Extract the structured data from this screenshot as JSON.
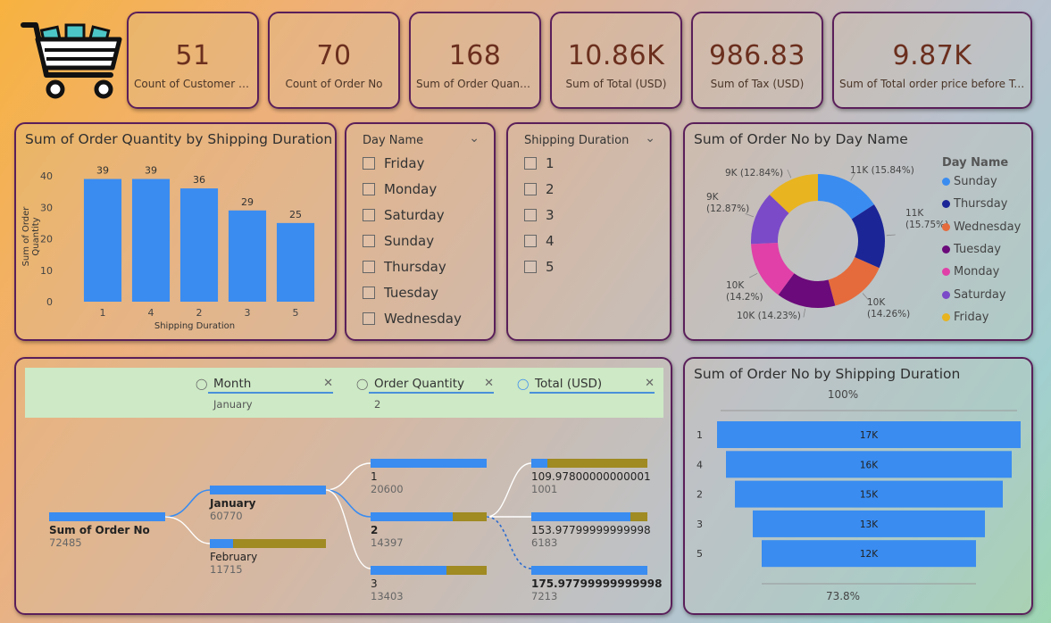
{
  "kpis": [
    {
      "value": "51",
      "label": "Count of Customer N..."
    },
    {
      "value": "70",
      "label": "Count of Order No"
    },
    {
      "value": "168",
      "label": "Sum of Order Quantity"
    },
    {
      "value": "10.86K",
      "label": "Sum of Total (USD)"
    },
    {
      "value": "986.83",
      "label": "Sum of Tax (USD)"
    },
    {
      "value": "9.87K",
      "label": "Sum of Total order price before Taxes"
    }
  ],
  "bar_chart": {
    "title": "Sum of Order Quantity by Shipping Duration",
    "xlabel": "Shipping Duration",
    "ylabel": "Sum of Order Quantity"
  },
  "day_slicer": {
    "header": "Day Name",
    "items": [
      "Friday",
      "Monday",
      "Saturday",
      "Sunday",
      "Thursday",
      "Tuesday",
      "Wednesday"
    ]
  },
  "duration_slicer": {
    "header": "Shipping Duration",
    "items": [
      "1",
      "2",
      "3",
      "4",
      "5"
    ]
  },
  "donut": {
    "title": "Sum of Order No by Day Name",
    "legend_title": "Day Name"
  },
  "decomp": {
    "filters": [
      {
        "name": "Month",
        "value": "January"
      },
      {
        "name": "Order Quantity",
        "value": "2"
      },
      {
        "name": "Total (USD)",
        "value": ""
      }
    ],
    "root": {
      "label": "Sum of Order No",
      "value": "72485"
    },
    "months": [
      {
        "label": "January",
        "value": "60770"
      },
      {
        "label": "February",
        "value": "11715"
      }
    ],
    "quantities": [
      {
        "label": "1",
        "value": "20600"
      },
      {
        "label": "2",
        "value": "14397"
      },
      {
        "label": "3",
        "value": "13403"
      }
    ],
    "totals": [
      {
        "label": "109.97800000000001",
        "value": "1001"
      },
      {
        "label": "153.97799999999998",
        "value": "6183"
      },
      {
        "label": "175.97799999999998",
        "value": "7213"
      }
    ]
  },
  "funnel": {
    "title": "Sum of Order No by Shipping Duration",
    "top_pct": "100%",
    "bottom_pct": "73.8%"
  },
  "chart_data": [
    {
      "type": "bar",
      "title": "Sum of Order Quantity by Shipping Duration",
      "categories": [
        "1",
        "4",
        "2",
        "3",
        "5"
      ],
      "values": [
        39,
        39,
        36,
        29,
        25
      ],
      "xlabel": "Shipping Duration",
      "ylabel": "Sum of Order Quantity",
      "ylim": [
        0,
        40
      ],
      "yticks": [
        "0",
        "10",
        "20",
        "30",
        "40"
      ],
      "color": "#3a8cf0"
    },
    {
      "type": "pie",
      "title": "Sum of Order No by Day Name",
      "categories": [
        "Sunday",
        "Thursday",
        "Wednesday",
        "Tuesday",
        "Monday",
        "Saturday",
        "Friday"
      ],
      "values": [
        15.84,
        15.75,
        14.26,
        14.23,
        14.2,
        12.87,
        12.84
      ],
      "labels": [
        "11K (15.84%)",
        "11K (15.75%)",
        "10K (14.26%)",
        "10K (14.23%)",
        "10K (14.2%)",
        "9K (12.87%)",
        "9K (12.84%)"
      ],
      "colors": [
        "#3a8cf0",
        "#1c2596",
        "#e56b3c",
        "#6b0a7a",
        "#e040a8",
        "#7b4ac8",
        "#e8b420"
      ]
    },
    {
      "type": "bar",
      "title": "Sum of Order No by Shipping Duration",
      "categories": [
        "1",
        "4",
        "2",
        "3",
        "5"
      ],
      "values": [
        17,
        16,
        15,
        13,
        12
      ],
      "labels": [
        "17K",
        "16K",
        "15K",
        "13K",
        "12K"
      ],
      "color": "#3a8cf0"
    }
  ]
}
